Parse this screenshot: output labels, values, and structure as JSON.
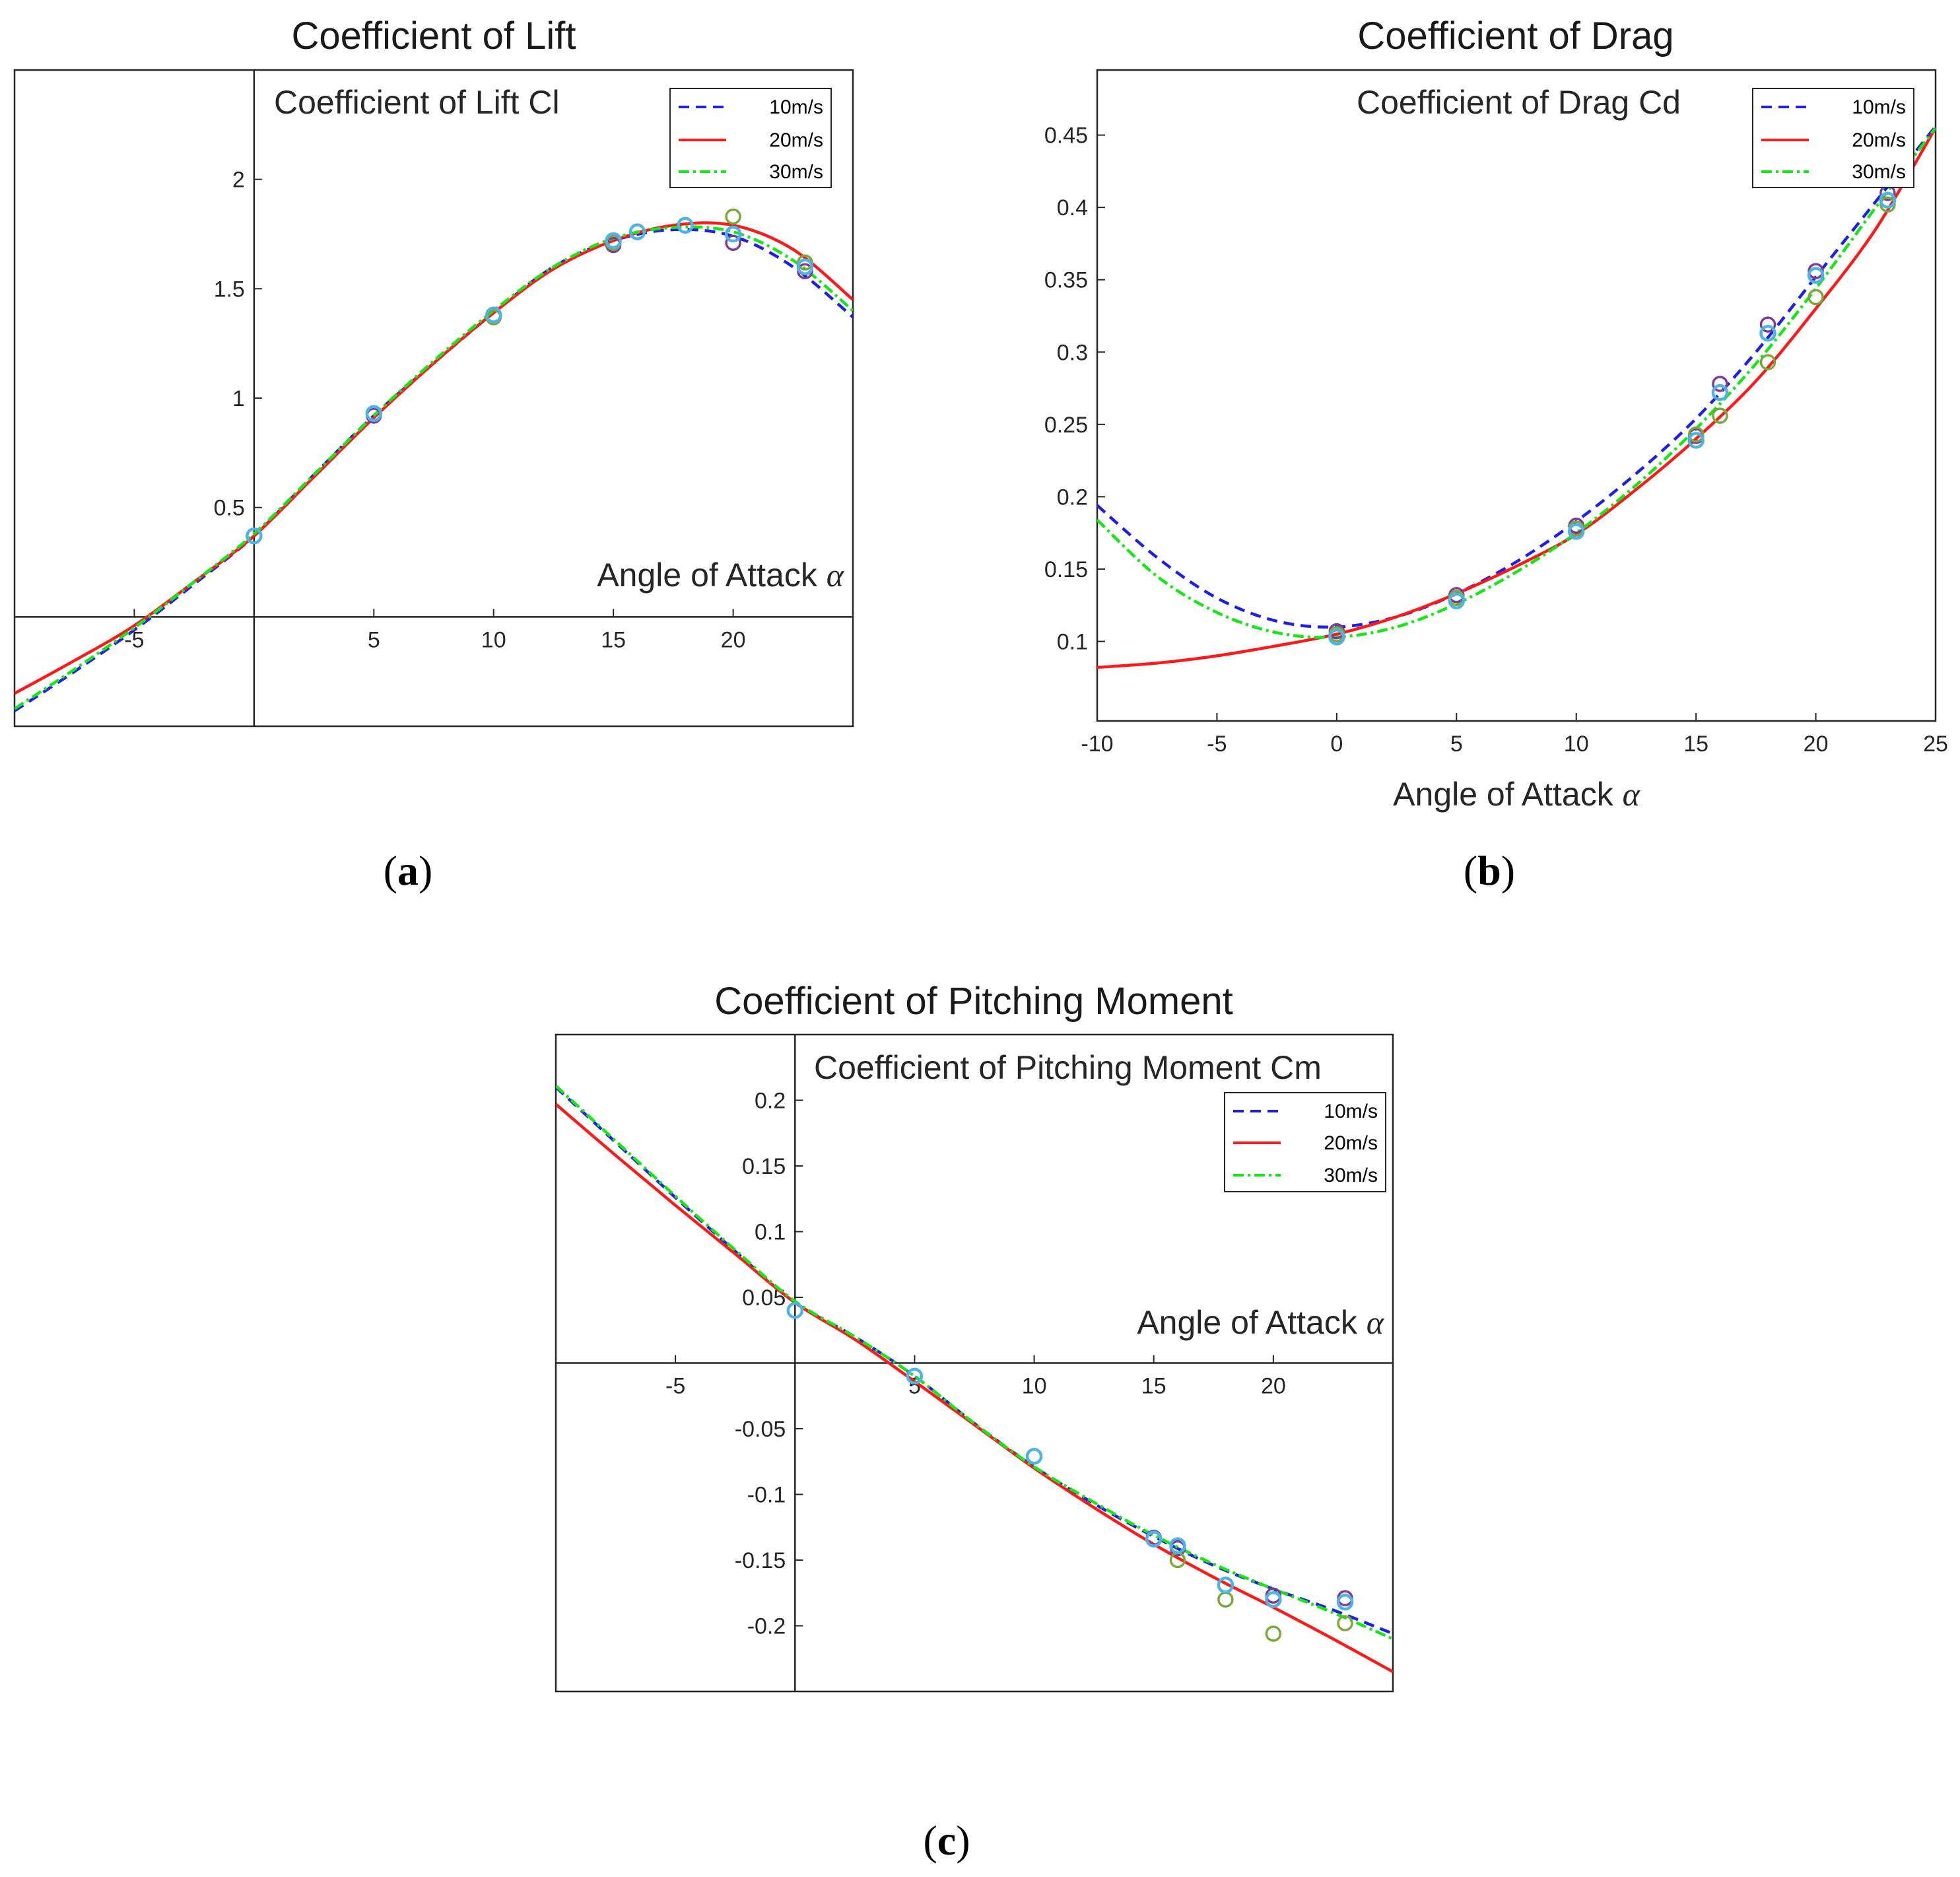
{
  "colors": {
    "s10": "#1f1fe6",
    "s20": "#ff1a1a",
    "s30": "#17e617",
    "m_cyan": "#4fb3e6",
    "m_purple": "#7e3c96",
    "m_olive": "#7aa83a"
  },
  "chart_data": [
    {
      "id": "a",
      "type": "line",
      "caption_letter": "a",
      "title": "Coefficient of Lift",
      "inner_label": "Coefficient of Lift Cl",
      "xlabel": "Angle of Attack ",
      "xsym": "α",
      "xlim": [
        -10,
        25
      ],
      "ylim": [
        -0.5,
        2.5
      ],
      "crossed_axes": true,
      "xticks": [
        -5,
        5,
        10,
        15,
        20
      ],
      "xtick_labels": [
        "-5",
        "5",
        "10",
        "15",
        "20"
      ],
      "yticks": [
        0.5,
        1,
        1.5,
        2
      ],
      "ytick_labels": [
        "0.5",
        "1",
        "1.5",
        "2"
      ],
      "legend": [
        "10m/s",
        "20m/s",
        "30m/s"
      ],
      "series": [
        {
          "name": "10m/s",
          "x": [
            -10,
            -7.5,
            -5,
            -2.5,
            0,
            2.5,
            5,
            7.5,
            10,
            12.5,
            15,
            17.5,
            20,
            22.5,
            25
          ],
          "y": [
            -0.43,
            -0.25,
            -0.06,
            0.15,
            0.37,
            0.65,
            0.92,
            1.16,
            1.39,
            1.6,
            1.72,
            1.77,
            1.74,
            1.6,
            1.37
          ]
        },
        {
          "name": "20m/s",
          "x": [
            -10,
            -7.5,
            -5,
            -2.5,
            0,
            2.5,
            5,
            7.5,
            10,
            12.5,
            15,
            17.5,
            20,
            22.5,
            25
          ],
          "y": [
            -0.35,
            -0.2,
            -0.04,
            0.16,
            0.37,
            0.64,
            0.91,
            1.16,
            1.39,
            1.59,
            1.72,
            1.79,
            1.79,
            1.68,
            1.45
          ]
        },
        {
          "name": "30m/s",
          "x": [
            -10,
            -7.5,
            -5,
            -2.5,
            0,
            2.5,
            5,
            7.5,
            10,
            12.5,
            15,
            17.5,
            20,
            22.5,
            25
          ],
          "y": [
            -0.42,
            -0.24,
            -0.05,
            0.16,
            0.38,
            0.65,
            0.92,
            1.17,
            1.4,
            1.6,
            1.73,
            1.78,
            1.76,
            1.63,
            1.4
          ]
        }
      ],
      "markers": [
        {
          "group": "cyan",
          "x": [
            0,
            5,
            10,
            15,
            16,
            18,
            20,
            23
          ],
          "y": [
            0.37,
            0.93,
            1.38,
            1.72,
            1.76,
            1.79,
            1.75,
            1.6
          ]
        },
        {
          "group": "purple",
          "x": [
            0,
            5,
            10,
            15,
            16,
            18,
            20,
            23
          ],
          "y": [
            0.37,
            0.92,
            1.37,
            1.7,
            1.76,
            1.79,
            1.71,
            1.58
          ]
        },
        {
          "group": "olive",
          "x": [
            0,
            5,
            10,
            15,
            16,
            18,
            20,
            23
          ],
          "y": [
            0.37,
            0.93,
            1.37,
            1.71,
            1.76,
            1.79,
            1.83,
            1.62
          ]
        }
      ]
    },
    {
      "id": "b",
      "type": "line",
      "caption_letter": "b",
      "title": "Coefficient of Drag",
      "inner_label": "Coefficient of Drag Cd",
      "xlabel": "Angle of Attack ",
      "xsym": "α",
      "xlim": [
        -10,
        25
      ],
      "ylim": [
        0.045,
        0.495
      ],
      "crossed_axes": false,
      "xticks": [
        -10,
        -5,
        0,
        5,
        10,
        15,
        20,
        25
      ],
      "xtick_labels": [
        "-10",
        "-5",
        "0",
        "5",
        "10",
        "15",
        "20",
        "25"
      ],
      "yticks": [
        0.1,
        0.15,
        0.2,
        0.25,
        0.3,
        0.35,
        0.4,
        0.45
      ],
      "ytick_labels": [
        "0.1",
        "0.15",
        "0.2",
        "0.25",
        "0.3",
        "0.35",
        "0.4",
        "0.45"
      ],
      "legend": [
        "10m/s",
        "20m/s",
        "30m/s"
      ],
      "series": [
        {
          "name": "10m/s",
          "x": [
            -10,
            -7.5,
            -5,
            -2.5,
            0,
            2.5,
            5,
            7.5,
            10,
            12.5,
            15,
            17.5,
            20,
            22.5,
            25
          ],
          "y": [
            0.194,
            0.158,
            0.13,
            0.114,
            0.11,
            0.117,
            0.133,
            0.155,
            0.183,
            0.216,
            0.254,
            0.3,
            0.352,
            0.404,
            0.456
          ]
        },
        {
          "name": "20m/s",
          "x": [
            -10,
            -7.5,
            -5,
            -2.5,
            0,
            2.5,
            5,
            7.5,
            10,
            12.5,
            15,
            17.5,
            20,
            22.5,
            25
          ],
          "y": [
            0.082,
            0.085,
            0.09,
            0.097,
            0.105,
            0.117,
            0.133,
            0.152,
            0.174,
            0.205,
            0.24,
            0.28,
            0.33,
            0.385,
            0.455
          ]
        },
        {
          "name": "30m/s",
          "x": [
            -10,
            -7.5,
            -5,
            -2.5,
            0,
            2.5,
            5,
            7.5,
            10,
            12.5,
            15,
            17.5,
            20,
            22.5,
            25
          ],
          "y": [
            0.184,
            0.145,
            0.12,
            0.106,
            0.103,
            0.11,
            0.126,
            0.148,
            0.175,
            0.208,
            0.247,
            0.292,
            0.344,
            0.4,
            0.455
          ]
        }
      ],
      "markers": [
        {
          "group": "cyan",
          "x": [
            0,
            5,
            10,
            15,
            16,
            18,
            20,
            23
          ],
          "y": [
            0.103,
            0.128,
            0.176,
            0.239,
            0.272,
            0.313,
            0.353,
            0.405
          ]
        },
        {
          "group": "purple",
          "x": [
            0,
            5,
            10,
            15,
            16,
            18,
            20,
            23
          ],
          "y": [
            0.107,
            0.132,
            0.18,
            0.242,
            0.278,
            0.319,
            0.356,
            0.41
          ]
        },
        {
          "group": "olive",
          "x": [
            0,
            5,
            10,
            15,
            16,
            18,
            20,
            23
          ],
          "y": [
            0.105,
            0.13,
            0.178,
            0.243,
            0.256,
            0.293,
            0.338,
            0.402
          ]
        }
      ]
    },
    {
      "id": "c",
      "type": "line",
      "caption_letter": "c",
      "title": "Coefficient of Pitching Moment",
      "inner_label": "Coefficient of Pitching Moment Cm",
      "xlabel": "Angle of Attack ",
      "xsym": "α",
      "xlim": [
        -10,
        25
      ],
      "ylim": [
        -0.25,
        0.25
      ],
      "crossed_axes": true,
      "xticks": [
        -5,
        5,
        10,
        15,
        20
      ],
      "xtick_labels": [
        "-5",
        "5",
        "10",
        "15",
        "20"
      ],
      "yticks": [
        -0.2,
        -0.15,
        -0.1,
        -0.05,
        0.05,
        0.1,
        0.15,
        0.2
      ],
      "ytick_labels": [
        "-0.2",
        "-0.15",
        "-0.1",
        "-0.05",
        "0.05",
        "0.1",
        "0.15",
        "0.2"
      ],
      "legend": [
        "10m/s",
        "20m/s",
        "30m/s"
      ],
      "series": [
        {
          "name": "10m/s",
          "x": [
            -10,
            -7.5,
            -5,
            -2.5,
            0,
            2.5,
            5,
            7.5,
            10,
            12.5,
            15,
            17.5,
            20,
            22.5,
            25
          ],
          "y": [
            0.21,
            0.168,
            0.126,
            0.085,
            0.046,
            0.02,
            -0.01,
            -0.046,
            -0.079,
            -0.107,
            -0.132,
            -0.154,
            -0.172,
            -0.188,
            -0.206
          ]
        },
        {
          "name": "20m/s",
          "x": [
            -10,
            -7.5,
            -5,
            -2.5,
            0,
            2.5,
            5,
            7.5,
            10,
            12.5,
            15,
            17.5,
            20,
            22.5,
            25
          ],
          "y": [
            0.197,
            0.158,
            0.12,
            0.083,
            0.046,
            0.018,
            -0.014,
            -0.047,
            -0.08,
            -0.11,
            -0.138,
            -0.163,
            -0.186,
            -0.21,
            -0.235
          ]
        },
        {
          "name": "30m/s",
          "x": [
            -10,
            -7.5,
            -5,
            -2.5,
            0,
            2.5,
            5,
            7.5,
            10,
            12.5,
            15,
            17.5,
            20,
            22.5,
            25
          ],
          "y": [
            0.211,
            0.169,
            0.127,
            0.086,
            0.047,
            0.02,
            -0.01,
            -0.046,
            -0.079,
            -0.106,
            -0.131,
            -0.153,
            -0.172,
            -0.19,
            -0.21
          ]
        }
      ],
      "markers": [
        {
          "group": "cyan",
          "x": [
            0,
            5,
            10,
            15,
            16,
            18,
            20,
            23
          ],
          "y": [
            0.04,
            -0.01,
            -0.071,
            -0.134,
            -0.139,
            -0.169,
            -0.18,
            -0.182
          ]
        },
        {
          "group": "purple",
          "x": [
            0,
            5,
            10,
            15,
            16,
            18,
            20,
            23
          ],
          "y": [
            0.04,
            -0.01,
            -0.071,
            -0.133,
            -0.141,
            -0.169,
            -0.177,
            -0.179
          ]
        },
        {
          "group": "olive",
          "x": [
            0,
            5,
            10,
            15,
            16,
            18,
            20,
            23
          ],
          "y": [
            0.04,
            -0.01,
            -0.071,
            -0.134,
            -0.15,
            -0.18,
            -0.206,
            -0.198
          ]
        }
      ]
    }
  ]
}
